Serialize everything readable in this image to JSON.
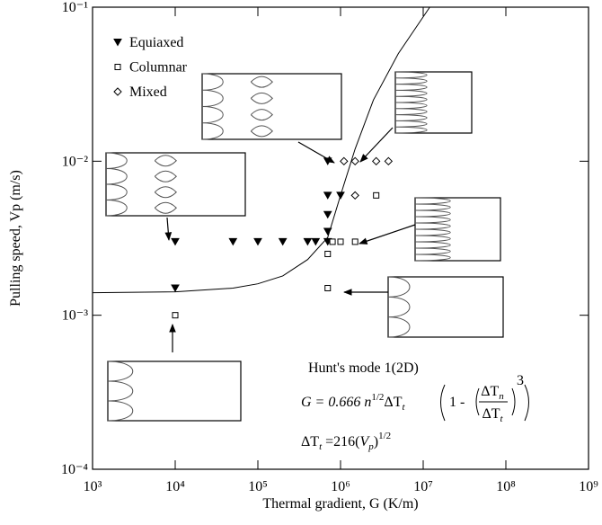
{
  "chart_data": {
    "type": "scatter",
    "x_label": "Thermal gradient, G (K/m)",
    "y_label": "Pulling speed, Vp (m/s)",
    "log_x": true,
    "log_y": true,
    "xlim": [
      1000,
      1000000000
    ],
    "ylim": [
      0.0001,
      0.1
    ],
    "xticks": [
      {
        "value": 1000,
        "label": "10³"
      },
      {
        "value": 10000,
        "label": "10⁴"
      },
      {
        "value": 100000,
        "label": "10⁵"
      },
      {
        "value": 1000000,
        "label": "10⁶"
      },
      {
        "value": 10000000,
        "label": "10⁷"
      },
      {
        "value": 100000000,
        "label": "10⁸"
      },
      {
        "value": 1000000000,
        "label": "10⁹"
      }
    ],
    "yticks": [
      {
        "value": 0.0001,
        "label": "10⁻⁴"
      },
      {
        "value": 0.001,
        "label": "10⁻³"
      },
      {
        "value": 0.01,
        "label": "10⁻²"
      },
      {
        "value": 0.1,
        "label": "10⁻¹"
      }
    ],
    "legend": "upper left",
    "series": [
      {
        "name": "Equiaxed",
        "marker": "triangle-down",
        "filled": true,
        "color": "#000000",
        "x": [
          10000,
          10000,
          50000,
          100000,
          200000,
          400000,
          500000,
          700000,
          700000,
          700000,
          700000,
          700000,
          1000000
        ],
        "y": [
          0.003,
          0.0015,
          0.003,
          0.003,
          0.003,
          0.003,
          0.003,
          0.003,
          0.0035,
          0.0045,
          0.006,
          0.01,
          0.006
        ]
      },
      {
        "name": "Columnar",
        "marker": "square",
        "filled": false,
        "color": "#000000",
        "x": [
          10000,
          700000,
          700000,
          800000,
          1000000,
          1500000,
          2700000
        ],
        "y": [
          0.001,
          0.0015,
          0.0025,
          0.003,
          0.003,
          0.003,
          0.006
        ]
      },
      {
        "name": "Mixed",
        "marker": "diamond",
        "filled": false,
        "color": "#000000",
        "x": [
          1100000,
          1500000,
          2700000,
          3800000,
          1500000
        ],
        "y": [
          0.01,
          0.01,
          0.01,
          0.01,
          0.006
        ]
      }
    ],
    "curve": {
      "color": "#000000",
      "x": [
        1000,
        10000,
        50000,
        100000,
        200000,
        400000,
        700000,
        1000000,
        1500000,
        2500000,
        5000000,
        12000000
      ],
      "y": [
        0.0014,
        0.00142,
        0.0015,
        0.0016,
        0.0018,
        0.0023,
        0.0032,
        0.006,
        0.012,
        0.025,
        0.05,
        0.1
      ]
    },
    "annotations": {
      "model": "Hunt's mode 1(2D)",
      "eq1": {
        "lhs": "G = 0.666 ",
        "n": "n",
        "n_exp": "1/2",
        "dt": "ΔT",
        "dt_sub": "t",
        "one_minus": "1 - ",
        "num": "ΔT",
        "num_sub": "n",
        "den": "ΔT",
        "den_sub": "t",
        "power": "3"
      },
      "eq2": {
        "dt": "ΔT",
        "dt_sub": "t",
        "rhs": " =216(",
        "v": "V",
        "v_sub": "p",
        "close": ")",
        "exp": "1/2"
      }
    }
  }
}
